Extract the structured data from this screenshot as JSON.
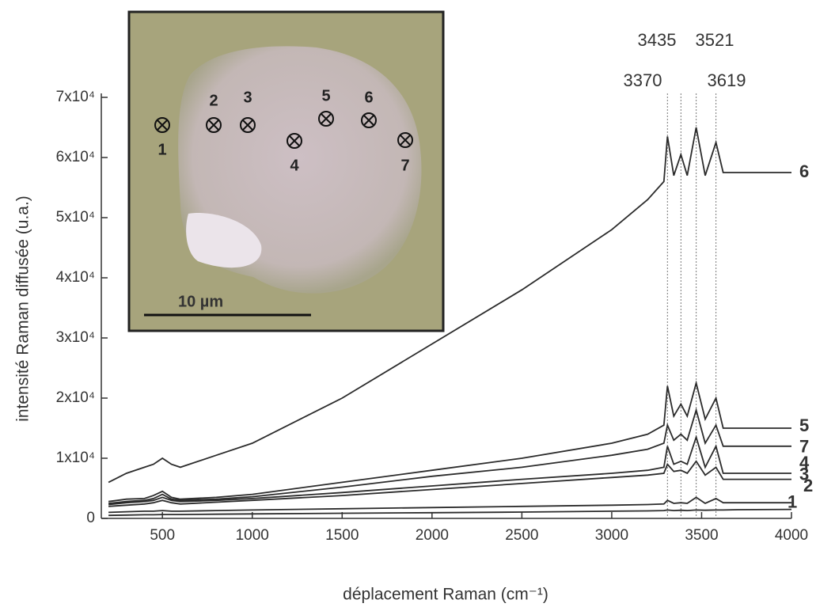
{
  "chart_data": {
    "type": "line",
    "x_label": "déplacement Raman (cm⁻¹)",
    "y_label": "intensité Raman diffusée (u.a.)",
    "xlim": [
      160,
      4000
    ],
    "xticks": [
      500,
      1000,
      1500,
      2000,
      2500,
      3000,
      3500,
      4000
    ],
    "ylim": [
      0,
      70000
    ],
    "yticks": [
      0,
      {
        "value": 10000,
        "label": "1x10⁴"
      },
      {
        "value": 20000,
        "label": "2x10⁴"
      },
      {
        "value": 30000,
        "label": "3x10⁴"
      },
      {
        "value": 40000,
        "label": "4x10⁴"
      },
      {
        "value": 50000,
        "label": "5x10⁴"
      },
      {
        "value": 60000,
        "label": "6x10⁴"
      },
      {
        "value": 70000,
        "label": "7x10⁴"
      }
    ],
    "x": [
      200,
      300,
      400,
      450,
      500,
      550,
      600,
      800,
      1000,
      1500,
      2000,
      2500,
      3000,
      3200,
      3290,
      3310,
      3345,
      3385,
      3420,
      3470,
      3520,
      3580,
      3620,
      3700,
      4000
    ],
    "series": [
      {
        "name": "6",
        "color": "#2b2b2b",
        "values": [
          6000,
          7500,
          8500,
          9000,
          10000,
          9000,
          8500,
          10500,
          12500,
          20000,
          29000,
          38000,
          48000,
          53000,
          56000,
          63500,
          57000,
          60500,
          57000,
          65000,
          57000,
          62500,
          57500,
          57500,
          57500
        ]
      },
      {
        "name": "5",
        "color": "#2b2b2b",
        "values": [
          2800,
          3200,
          3300,
          3800,
          4500,
          3500,
          3200,
          3500,
          4000,
          6000,
          8000,
          10000,
          12500,
          14000,
          15500,
          22000,
          17000,
          19000,
          17000,
          22500,
          16500,
          20000,
          15000,
          15000,
          15000
        ]
      },
      {
        "name": "7",
        "color": "#2b2b2b",
        "values": [
          2500,
          2800,
          3000,
          3300,
          4000,
          3200,
          3000,
          3200,
          3600,
          5200,
          7000,
          8500,
          10500,
          11500,
          12500,
          15500,
          13000,
          14000,
          13000,
          18000,
          12500,
          15500,
          12000,
          12000,
          12000
        ]
      },
      {
        "name": "4",
        "color": "#2b2b2b",
        "values": [
          2300,
          2600,
          2800,
          3000,
          3500,
          3000,
          2800,
          3000,
          3300,
          4300,
          5400,
          6500,
          7500,
          8000,
          8500,
          12000,
          9000,
          9500,
          9000,
          13500,
          8500,
          12000,
          7500,
          7500,
          7500
        ]
      },
      {
        "name": "3",
        "color": "#2b2b2b",
        "values": [
          2000,
          2200,
          2400,
          2600,
          3000,
          2600,
          2400,
          2700,
          3000,
          3800,
          4800,
          5800,
          6800,
          7200,
          7500,
          9000,
          7800,
          8000,
          7500,
          9500,
          7200,
          8500,
          6500,
          6500,
          6500
        ]
      },
      {
        "name": "2",
        "color": "#2b2b2b",
        "values": [
          1000,
          1100,
          1200,
          1200,
          1300,
          1200,
          1200,
          1300,
          1400,
          1600,
          1800,
          2000,
          2200,
          2300,
          2400,
          3000,
          2500,
          2600,
          2500,
          3500,
          2500,
          3300,
          2600,
          2600,
          2600
        ]
      },
      {
        "name": "1",
        "color": "#2b2b2b",
        "values": [
          500,
          550,
          600,
          600,
          650,
          650,
          650,
          700,
          750,
          850,
          950,
          1050,
          1200,
          1250,
          1300,
          1400,
          1300,
          1350,
          1300,
          1400,
          1350,
          1400,
          1400,
          1450,
          1500
        ]
      }
    ],
    "peak_lines": [
      {
        "x": 3310,
        "label": "3370"
      },
      {
        "x": 3385,
        "label": "3435"
      },
      {
        "x": 3470,
        "label": "3521"
      },
      {
        "x": 3580,
        "label": "3619"
      }
    ],
    "inset": {
      "markers": [
        "1",
        "2",
        "3",
        "4",
        "5",
        "6",
        "7"
      ],
      "scale_label": "10 µm"
    }
  }
}
